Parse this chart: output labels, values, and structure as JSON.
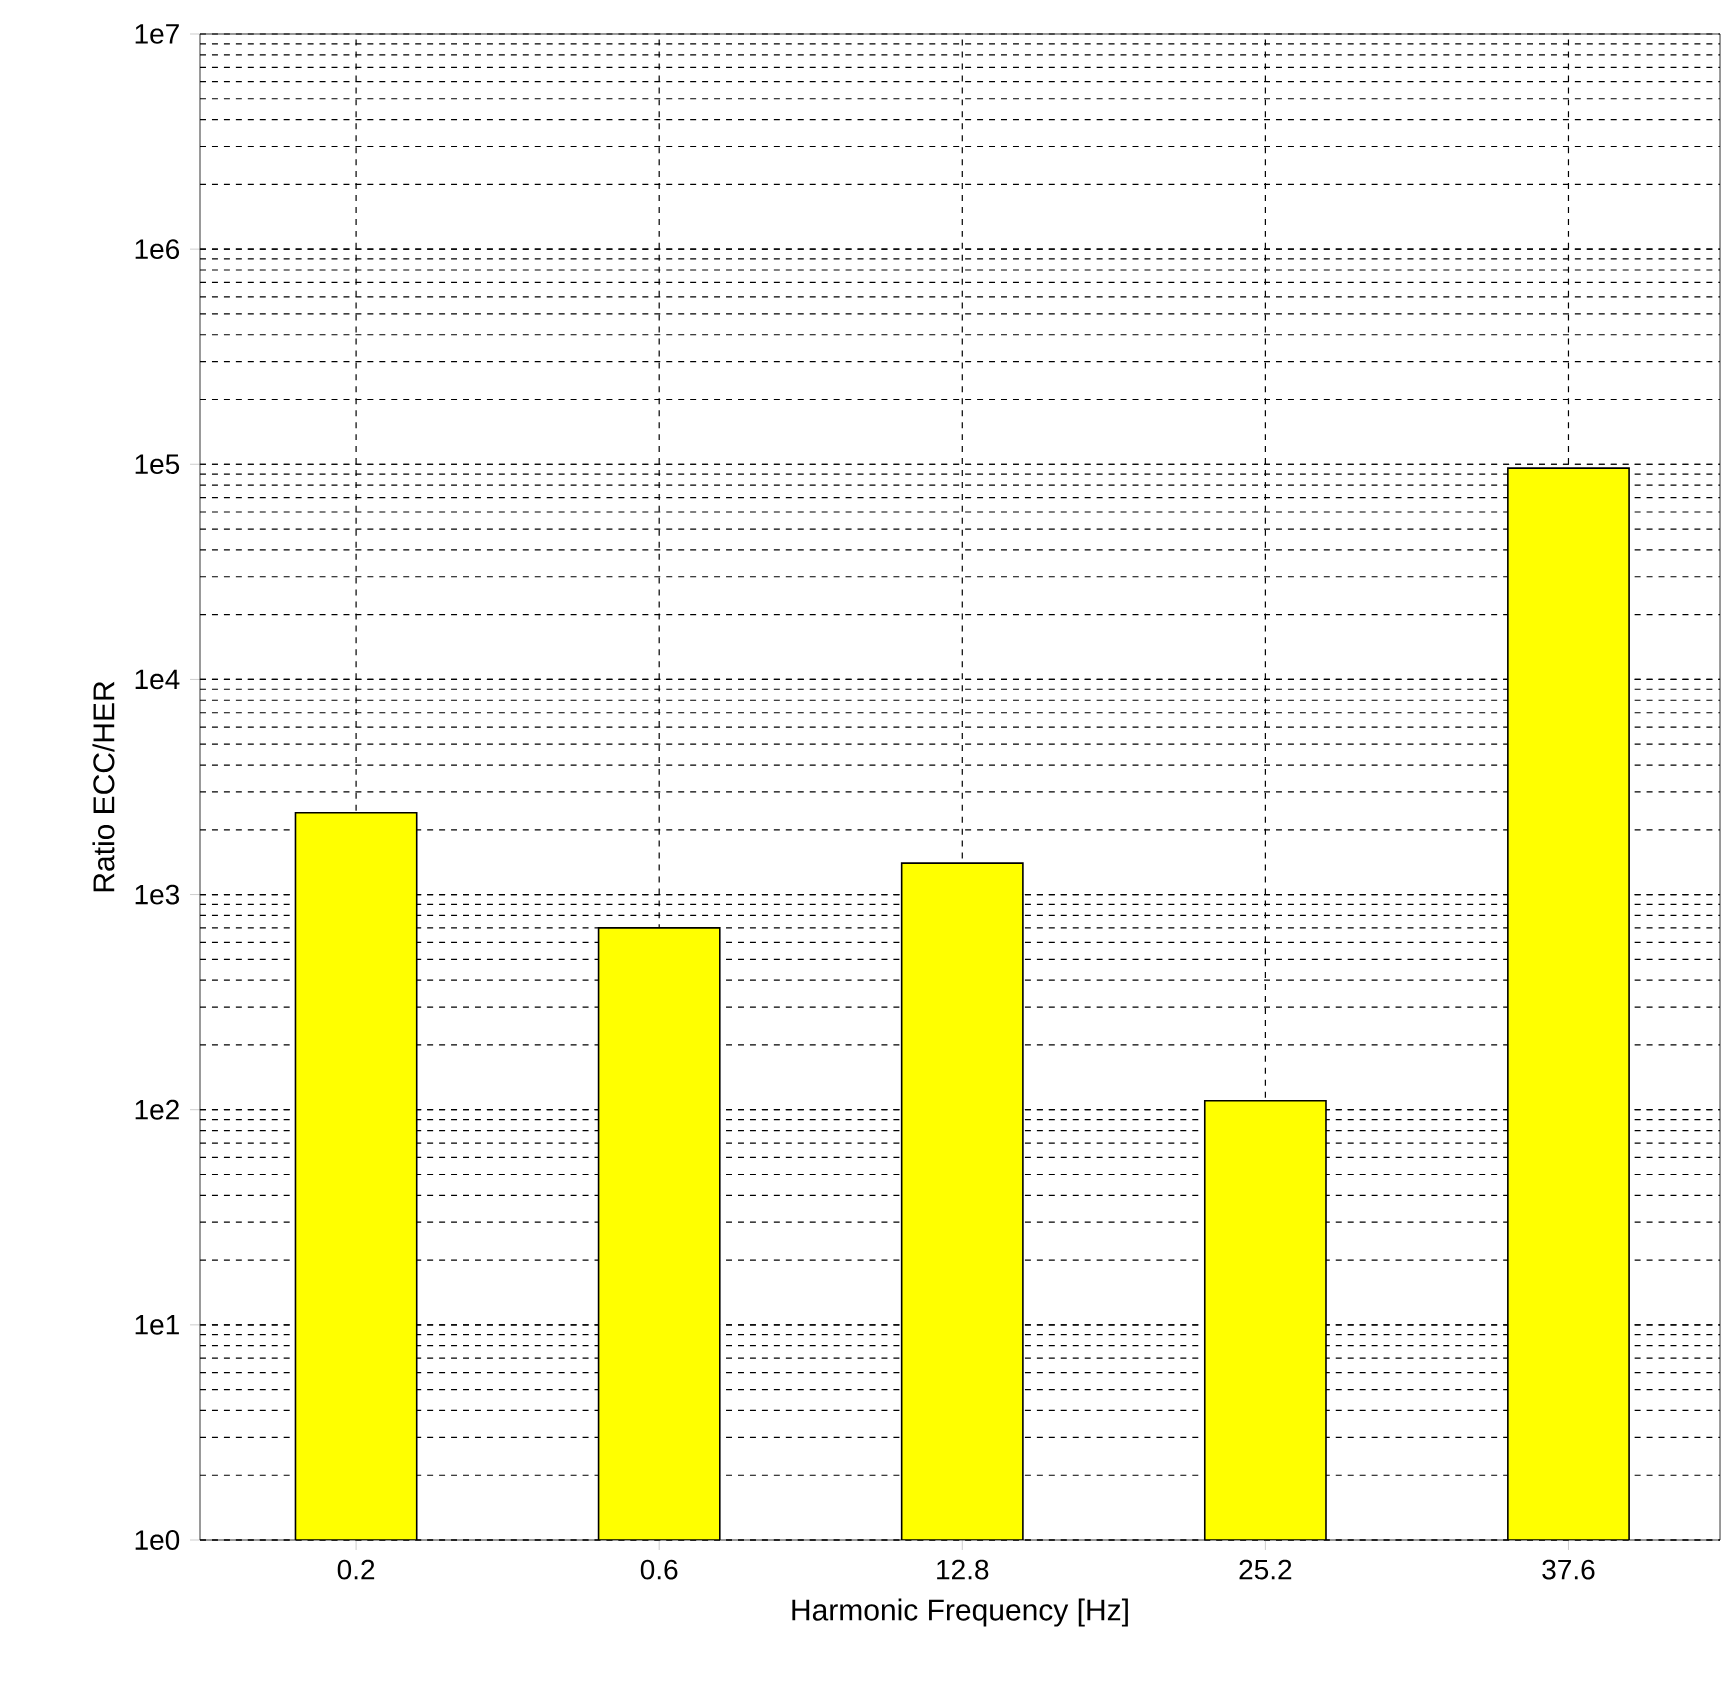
{
  "chart_data": {
    "type": "bar",
    "xlabel": "Harmonic Frequency [Hz]",
    "ylabel": "Ratio ECC/HER",
    "categories": [
      "0.2",
      "0.6",
      "12.8",
      "25.2",
      "37.6"
    ],
    "values": [
      2400,
      700,
      1400,
      110,
      96000
    ],
    "color": "#ffff00",
    "log": true,
    "ylim": [
      1,
      10000000
    ],
    "yticks": [
      {
        "value": 1,
        "label": "1e0"
      },
      {
        "value": 10,
        "label": "1e1"
      },
      {
        "value": 100,
        "label": "1e2"
      },
      {
        "value": 1000,
        "label": "1e3"
      },
      {
        "value": 10000,
        "label": "1e4"
      },
      {
        "value": 100000,
        "label": "1e5"
      },
      {
        "value": 1000000,
        "label": "1e6"
      },
      {
        "value": 10000000,
        "label": "1e7"
      }
    ],
    "grid": true
  }
}
